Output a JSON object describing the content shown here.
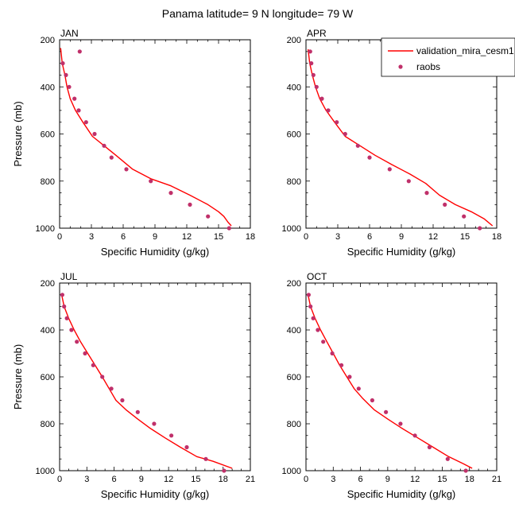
{
  "figure": {
    "title": "Panama  latitude= 9 N longitude= 79 W"
  },
  "legend": {
    "model_label": "validation_mira_cesm1",
    "obs_label": "raobs"
  },
  "colors": {
    "model_line": "#ff0000",
    "obs_marker": "#c0306a"
  },
  "chart_data": [
    {
      "type": "line",
      "panel": "JAN",
      "xlabel": "Specific Humidity (g/kg)",
      "ylabel": "Pressure (mb)",
      "xlim": [
        0,
        18
      ],
      "ylim": [
        1000,
        200
      ],
      "y_axis_inverted": true,
      "xticks": [
        0,
        3,
        6,
        9,
        12,
        15,
        18
      ],
      "yticks": [
        200,
        400,
        600,
        800,
        1000
      ],
      "legend_placement": "none",
      "series": [
        {
          "name": "validation_mira_cesm1",
          "style": "line",
          "x": [
            0.1,
            0.25,
            0.5,
            0.7,
            1.0,
            1.5,
            2.2,
            3.1,
            4.2,
            5.3,
            6.9,
            8.6,
            10.5,
            12.3,
            14.0,
            15.0,
            15.5,
            15.9,
            16.2
          ],
          "y": [
            235,
            300,
            350,
            400,
            450,
            500,
            550,
            610,
            650,
            690,
            750,
            790,
            820,
            860,
            900,
            930,
            950,
            975,
            990
          ]
        },
        {
          "name": "raobs",
          "style": "markers",
          "x": [
            1.9,
            0.3,
            0.6,
            0.9,
            1.4,
            1.8,
            2.5,
            3.3,
            4.2,
            4.9,
            6.3,
            8.6,
            10.5,
            12.3,
            14.0,
            16.0
          ],
          "y": [
            250,
            300,
            350,
            400,
            450,
            500,
            550,
            600,
            650,
            700,
            750,
            800,
            850,
            900,
            950,
            1000
          ]
        }
      ]
    },
    {
      "type": "line",
      "panel": "APR",
      "xlabel": "Specific Humidity (g/kg)",
      "ylabel": "",
      "xlim": [
        0,
        18
      ],
      "ylim": [
        1000,
        200
      ],
      "y_axis_inverted": true,
      "xticks": [
        0,
        3,
        6,
        9,
        12,
        15,
        18
      ],
      "yticks": [
        200,
        400,
        600,
        800,
        1000
      ],
      "legend_placement": "top-right",
      "series": [
        {
          "name": "validation_mira_cesm1",
          "style": "line",
          "x": [
            0.2,
            0.35,
            0.6,
            0.9,
            1.3,
            1.9,
            2.7,
            3.7,
            5.1,
            6.5,
            8.1,
            9.8,
            11.3,
            12.6,
            14.1,
            15.6,
            16.8,
            17.6
          ],
          "y": [
            240,
            300,
            350,
            400,
            450,
            500,
            550,
            610,
            650,
            690,
            730,
            770,
            810,
            860,
            900,
            930,
            960,
            990
          ]
        },
        {
          "name": "raobs",
          "style": "markers",
          "x": [
            0.4,
            0.5,
            0.7,
            1.0,
            1.5,
            2.1,
            2.9,
            3.7,
            4.9,
            6.0,
            7.9,
            9.7,
            11.4,
            13.1,
            14.9,
            16.4
          ],
          "y": [
            250,
            300,
            350,
            400,
            450,
            500,
            550,
            600,
            650,
            700,
            750,
            800,
            850,
            900,
            950,
            1000
          ]
        }
      ]
    },
    {
      "type": "line",
      "panel": "JUL",
      "xlabel": "Specific Humidity (g/kg)",
      "ylabel": "Pressure (mb)",
      "xlim": [
        0,
        21
      ],
      "ylim": [
        1000,
        200
      ],
      "y_axis_inverted": true,
      "xticks": [
        0,
        3,
        6,
        9,
        12,
        15,
        18,
        21
      ],
      "yticks": [
        200,
        400,
        600,
        800,
        1000
      ],
      "legend_placement": "none",
      "series": [
        {
          "name": "validation_mira_cesm1",
          "style": "line",
          "x": [
            0.2,
            0.5,
            1.0,
            1.6,
            2.3,
            3.1,
            3.9,
            4.7,
            5.6,
            6.2,
            7.3,
            8.6,
            10.0,
            11.6,
            13.3,
            15.1,
            16.9,
            19.0
          ],
          "y": [
            245,
            300,
            350,
            400,
            450,
            500,
            550,
            600,
            660,
            700,
            740,
            780,
            820,
            860,
            900,
            940,
            960,
            990
          ]
        },
        {
          "name": "raobs",
          "style": "markers",
          "x": [
            0.3,
            0.5,
            0.8,
            1.3,
            1.9,
            2.8,
            3.7,
            4.7,
            5.7,
            6.9,
            8.6,
            10.4,
            12.3,
            14.0,
            16.1,
            18.1
          ],
          "y": [
            250,
            300,
            350,
            400,
            450,
            500,
            550,
            600,
            650,
            700,
            750,
            800,
            850,
            900,
            950,
            1000
          ]
        }
      ]
    },
    {
      "type": "line",
      "panel": "OCT",
      "xlabel": "Specific Humidity (g/kg)",
      "ylabel": "",
      "xlim": [
        0,
        21
      ],
      "ylim": [
        1000,
        200
      ],
      "y_axis_inverted": true,
      "xticks": [
        0,
        3,
        6,
        9,
        12,
        15,
        18,
        21
      ],
      "yticks": [
        200,
        400,
        600,
        800,
        1000
      ],
      "legend_placement": "none",
      "series": [
        {
          "name": "validation_mira_cesm1",
          "style": "line",
          "x": [
            0.2,
            0.5,
            1.0,
            1.6,
            2.3,
            3.0,
            3.7,
            4.5,
            5.3,
            6.2,
            7.5,
            9.0,
            10.6,
            12.3,
            14.0,
            15.7,
            17.3,
            18.3
          ],
          "y": [
            245,
            300,
            350,
            400,
            450,
            500,
            550,
            600,
            650,
            690,
            740,
            780,
            820,
            860,
            900,
            940,
            970,
            990
          ]
        },
        {
          "name": "raobs",
          "style": "markers",
          "x": [
            0.3,
            0.5,
            0.8,
            1.3,
            1.9,
            2.9,
            3.9,
            4.8,
            5.8,
            7.3,
            8.8,
            10.4,
            12.0,
            13.6,
            15.6,
            17.6
          ],
          "y": [
            250,
            300,
            350,
            400,
            450,
            500,
            550,
            600,
            650,
            700,
            750,
            800,
            850,
            900,
            950,
            1000
          ]
        }
      ]
    }
  ]
}
